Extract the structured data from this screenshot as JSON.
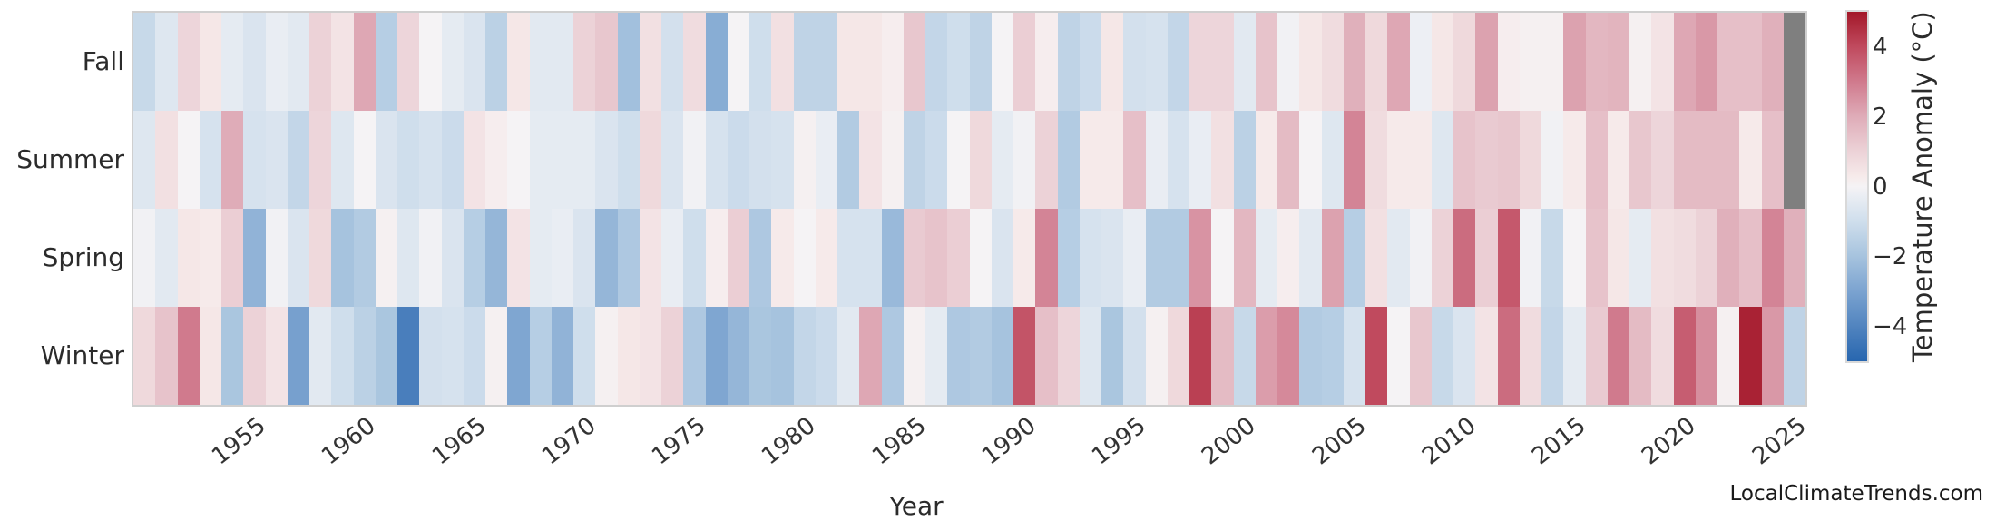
{
  "page": {
    "background": "#ffffff"
  },
  "footer": {
    "watermark": "LocalClimateTrends.com"
  },
  "chart_data": {
    "type": "heatmap",
    "title": "",
    "xlabel": "Year",
    "ylabel": "",
    "legend_position": "right-colorbar",
    "grid": false,
    "rows": [
      "Fall",
      "Summer",
      "Spring",
      "Winter"
    ],
    "x": [
      1950,
      1951,
      1952,
      1953,
      1954,
      1955,
      1956,
      1957,
      1958,
      1959,
      1960,
      1961,
      1962,
      1963,
      1964,
      1965,
      1966,
      1967,
      1968,
      1969,
      1970,
      1971,
      1972,
      1973,
      1974,
      1975,
      1976,
      1977,
      1978,
      1979,
      1980,
      1981,
      1982,
      1983,
      1984,
      1985,
      1986,
      1987,
      1988,
      1989,
      1990,
      1991,
      1992,
      1993,
      1994,
      1995,
      1996,
      1997,
      1998,
      1999,
      2000,
      2001,
      2002,
      2003,
      2004,
      2005,
      2006,
      2007,
      2008,
      2009,
      2010,
      2011,
      2012,
      2013,
      2014,
      2015,
      2016,
      2017,
      2018,
      2019,
      2020,
      2021,
      2022,
      2023,
      2024,
      2025
    ],
    "x_tick_labels": [
      "1955",
      "1960",
      "1965",
      "1970",
      "1975",
      "1980",
      "1985",
      "1990",
      "1995",
      "2000",
      "2005",
      "2010",
      "2015",
      "2020",
      "2025"
    ],
    "values": [
      [
        -1.2,
        -0.6,
        0.9,
        0.4,
        -0.4,
        -0.7,
        -0.3,
        -0.5,
        1.0,
        0.5,
        2.1,
        -1.6,
        0.9,
        0.0,
        -0.4,
        -0.7,
        -1.5,
        0.4,
        -0.5,
        -0.5,
        1.0,
        1.3,
        -2.1,
        0.6,
        -0.9,
        0.7,
        -2.7,
        0.0,
        -1.0,
        0.6,
        -1.4,
        -1.4,
        0.4,
        0.4,
        0.2,
        1.3,
        -1.3,
        -1.0,
        -1.4,
        0.0,
        1.1,
        0.2,
        -1.4,
        -1.1,
        0.4,
        -0.9,
        -0.8,
        -1.3,
        0.9,
        0.9,
        -0.5,
        1.4,
        -0.1,
        0.4,
        0.7,
        1.9,
        0.8,
        2.1,
        -0.2,
        0.4,
        0.8,
        2.2,
        0.2,
        0.1,
        0.1,
        2.2,
        1.7,
        1.8,
        0.1,
        0.5,
        2.1,
        2.4,
        1.5,
        1.5,
        1.9,
        null
      ],
      [
        -0.6,
        0.6,
        0.0,
        -0.8,
        2.0,
        -0.8,
        -0.7,
        -1.3,
        0.9,
        -0.6,
        0.0,
        -0.7,
        -1.0,
        -0.8,
        -1.1,
        0.5,
        0.2,
        0.0,
        -0.4,
        -0.4,
        -0.4,
        -0.7,
        -1.0,
        0.8,
        -0.7,
        -0.1,
        -0.8,
        -1.1,
        -0.9,
        -0.8,
        0.1,
        -0.3,
        -1.7,
        0.5,
        0.1,
        -1.4,
        -1.1,
        0.0,
        0.8,
        -0.4,
        -0.1,
        1.0,
        -1.7,
        0.3,
        0.3,
        1.5,
        -0.3,
        -0.8,
        -0.3,
        0.6,
        -1.5,
        0.3,
        1.6,
        0.0,
        -0.6,
        2.8,
        0.7,
        0.3,
        0.3,
        -0.6,
        1.4,
        1.2,
        1.3,
        0.8,
        -0.1,
        0.3,
        1.5,
        0.3,
        1.3,
        0.9,
        1.6,
        1.6,
        1.6,
        0.3,
        1.5,
        null
      ],
      [
        -0.1,
        -0.5,
        0.4,
        0.3,
        1.1,
        -2.5,
        -0.1,
        -0.7,
        0.8,
        -2.0,
        -1.7,
        0.1,
        -0.6,
        -0.1,
        -0.7,
        -1.6,
        -2.4,
        0.5,
        -0.4,
        -0.3,
        -0.7,
        -2.4,
        -1.8,
        0.5,
        -0.3,
        -1.0,
        0.2,
        1.1,
        -1.8,
        0.3,
        0.0,
        0.3,
        -0.8,
        -0.8,
        -2.3,
        1.2,
        1.4,
        1.1,
        0.0,
        -0.7,
        0.3,
        2.8,
        -1.6,
        -0.8,
        -0.7,
        -0.3,
        -1.7,
        -1.7,
        2.5,
        0.0,
        1.7,
        -0.4,
        0.2,
        -0.5,
        2.2,
        -1.6,
        0.6,
        -0.5,
        -0.1,
        1.0,
        3.3,
        1.1,
        3.7,
        -0.1,
        -1.2,
        0.0,
        1.4,
        0.4,
        -0.4,
        0.6,
        0.7,
        1.0,
        1.9,
        1.5,
        2.8,
        1.9
      ],
      [
        0.8,
        1.4,
        3.0,
        0.4,
        -1.9,
        1.0,
        0.5,
        -3.1,
        -0.5,
        -1.0,
        -1.5,
        -1.9,
        -4.2,
        -0.9,
        -0.8,
        -1.1,
        0.1,
        -2.9,
        -1.6,
        -2.5,
        -1.0,
        0.1,
        0.4,
        0.5,
        1.0,
        -1.8,
        -2.9,
        -2.4,
        -1.9,
        -2.0,
        -1.3,
        -1.1,
        -0.5,
        2.1,
        -1.8,
        0.1,
        -0.4,
        -1.8,
        -1.7,
        -2.0,
        3.8,
        1.5,
        0.9,
        -0.6,
        -1.9,
        -0.9,
        0.1,
        0.8,
        4.2,
        1.6,
        -1.2,
        2.3,
        2.7,
        -1.7,
        -1.6,
        -0.8,
        4.0,
        0.0,
        1.3,
        -1.2,
        -0.7,
        0.5,
        3.3,
        0.7,
        -1.3,
        -0.4,
        1.2,
        3.0,
        1.6,
        0.7,
        3.6,
        2.6,
        0.1,
        4.8,
        2.4,
        -1.4
      ]
    ],
    "missing_color": "#7f7f7f",
    "color_scale": [
      [
        -5.0,
        "#2766af"
      ],
      [
        -4.0,
        "#5184bf"
      ],
      [
        -3.0,
        "#7ba3d0"
      ],
      [
        -2.0,
        "#a6c3de"
      ],
      [
        -1.0,
        "#cfdeec"
      ],
      [
        -0.3,
        "#e9edf3"
      ],
      [
        0.0,
        "#f5f3f5"
      ],
      [
        0.3,
        "#f6eaea"
      ],
      [
        1.0,
        "#ecd2d7"
      ],
      [
        2.0,
        "#dfacb8"
      ],
      [
        3.0,
        "#d07a8d"
      ],
      [
        4.0,
        "#c04a5e"
      ],
      [
        5.0,
        "#a31829"
      ]
    ],
    "colorbar": {
      "label": "Temperature Anomaly (°C)",
      "tick_labels": [
        "4",
        "2",
        "0",
        "−2",
        "−4"
      ],
      "tick_values": [
        4,
        2,
        0,
        -2,
        -4
      ],
      "vmin": -5,
      "vmax": 5
    }
  }
}
